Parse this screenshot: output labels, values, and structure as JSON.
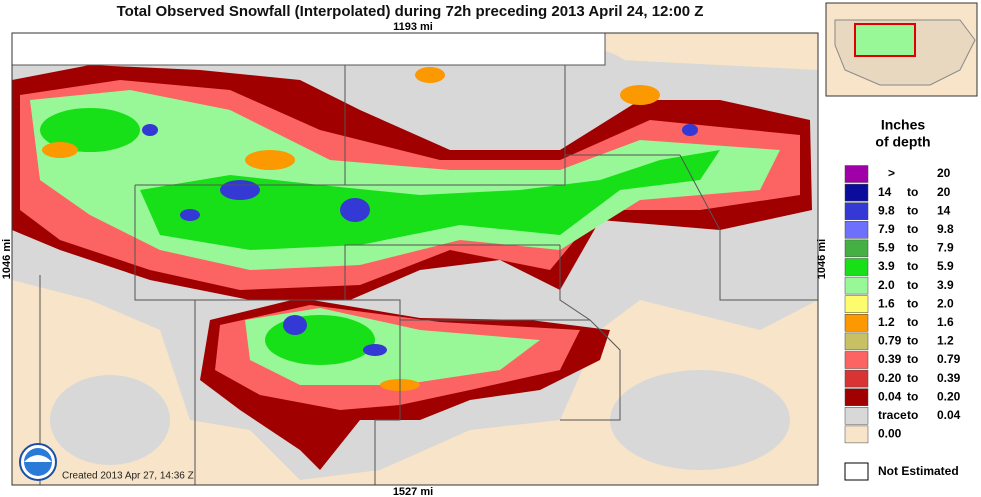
{
  "title": "Total Observed Snowfall (Interpolated) during 72h preceding 2013 April 24, 12:00 Z",
  "scale": {
    "top": "1193 mi",
    "left": "1046 mi",
    "right": "1046 mi",
    "bottom": "1527 mi"
  },
  "credit": "Created 2013 Apr 27, 14:36 Z",
  "legend": {
    "title": [
      "Inches",
      "of depth"
    ],
    "rows": [
      {
        "color": "#a000a8",
        "from": ">",
        "to": "20"
      },
      {
        "color": "#0c0c9c",
        "from": "14",
        "sep": "to",
        "to": "20"
      },
      {
        "color": "#3438d4",
        "from": "9.8",
        "sep": "to",
        "to": "14"
      },
      {
        "color": "#6c70fc",
        "from": "7.9",
        "sep": "to",
        "to": "9.8"
      },
      {
        "color": "#44b044",
        "from": "5.9",
        "sep": "to",
        "to": "7.9"
      },
      {
        "color": "#18e018",
        "from": "3.9",
        "sep": "to",
        "to": "5.9"
      },
      {
        "color": "#98f898",
        "from": "2.0",
        "sep": "to",
        "to": "3.9"
      },
      {
        "color": "#fcfc6c",
        "from": "1.6",
        "sep": "to",
        "to": "2.0"
      },
      {
        "color": "#fc9800",
        "from": "1.2",
        "sep": "to",
        "to": "1.6"
      },
      {
        "color": "#c8c064",
        "from": "0.79",
        "sep": "to",
        "to": "1.2"
      },
      {
        "color": "#fc6464",
        "from": "0.39",
        "sep": "to",
        "to": "0.79"
      },
      {
        "color": "#d83434",
        "from": "0.20",
        "sep": "to",
        "to": "0.39"
      },
      {
        "color": "#a00000",
        "from": "0.04",
        "sep": "to",
        "to": "0.20"
      },
      {
        "color": "#d8d8d8",
        "from": "trace",
        "sep": "to",
        "to": "0.04"
      },
      {
        "color": "#f8e4c8",
        "from": "0.00"
      }
    ],
    "not_estimated": "Not Estimated"
  }
}
